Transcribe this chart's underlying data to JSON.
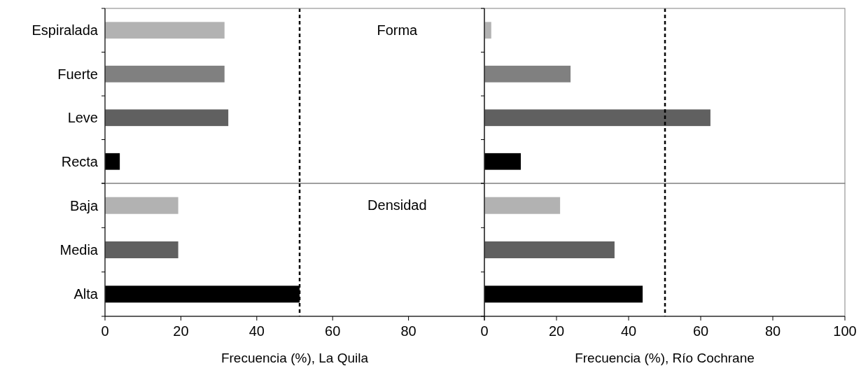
{
  "chart_data": [
    {
      "type": "bar",
      "orientation": "horizontal",
      "categories": [
        "Espiralada",
        "Fuerte",
        "Leve",
        "Recta"
      ],
      "values": [
        31.5,
        31.5,
        32.5,
        3.9
      ],
      "colors": [
        "#b2b2b2",
        "#808080",
        "#606060",
        "#000000"
      ],
      "xlim": [
        0,
        100
      ],
      "tick_labels": "y",
      "annotations": [
        "Forma"
      ],
      "ref_lines": [
        {
          "axis": "x",
          "value": 51.3,
          "color": "#000000",
          "line_style": "dashed"
        }
      ],
      "grid": false
    },
    {
      "type": "bar",
      "orientation": "horizontal",
      "categories": [
        null,
        null,
        null,
        null
      ],
      "values": [
        1.9,
        23.9,
        62.7,
        10.1
      ],
      "colors": [
        "#b2b2b2",
        "#808080",
        "#606060",
        "#000000"
      ],
      "xlim": [
        0,
        100
      ],
      "tick_labels": false,
      "ref_lines": [
        {
          "axis": "x",
          "value": 50.1,
          "color": "#000000",
          "line_style": "dashed"
        }
      ],
      "grid": false
    },
    {
      "type": "bar",
      "orientation": "horizontal",
      "categories": [
        "Baja",
        "Media",
        "Alta"
      ],
      "values": [
        19.3,
        19.3,
        51.3
      ],
      "colors": [
        "#b2b2b2",
        "#606060",
        "#000000"
      ],
      "xlim": [
        0,
        100
      ],
      "xticks": [
        0,
        20,
        40,
        60,
        80,
        {
          "value": 100,
          "label": null
        }
      ],
      "xlabel": "Frecuencia (%), La Quila",
      "annotations": [
        "Densidad"
      ],
      "ref_lines": [
        {
          "axis": "x",
          "value": 51.3,
          "color": "#000000",
          "line_style": "dashed"
        }
      ],
      "grid": false
    },
    {
      "type": "bar",
      "orientation": "horizontal",
      "categories": [
        null,
        null,
        null
      ],
      "values": [
        21.0,
        36.1,
        43.9
      ],
      "colors": [
        "#b2b2b2",
        "#606060",
        "#000000"
      ],
      "xlim": [
        0,
        100
      ],
      "xticks": [
        0,
        20,
        40,
        60,
        80,
        100
      ],
      "xlabel": "Frecuencia (%), Río Cochrane",
      "tick_labels": "x",
      "ref_lines": [
        {
          "axis": "x",
          "value": 50.1,
          "color": "#000000",
          "line_style": "dashed"
        }
      ],
      "grid": false
    }
  ]
}
